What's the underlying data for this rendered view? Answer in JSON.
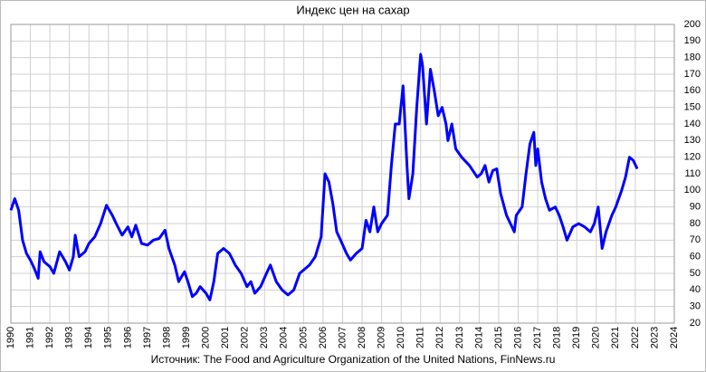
{
  "chart_data": {
    "type": "line",
    "title": "Индекс цен на сахар",
    "source": "Источник: The Food and Agriculture Organization of the United Nations, FinNews.ru",
    "series": [
      {
        "name": "Индекс цен на сахар",
        "color": "#0000ff",
        "x": [
          1990.0,
          1990.2,
          1990.4,
          1990.6,
          1990.8,
          1991.0,
          1991.2,
          1991.4,
          1991.5,
          1991.7,
          1992.0,
          1992.2,
          1992.5,
          1992.8,
          1993.0,
          1993.2,
          1993.3,
          1993.5,
          1993.8,
          1994.0,
          1994.3,
          1994.6,
          1994.9,
          1995.2,
          1995.4,
          1995.7,
          1996.0,
          1996.2,
          1996.4,
          1996.7,
          1997.0,
          1997.3,
          1997.6,
          1997.9,
          1998.1,
          1998.4,
          1998.6,
          1998.9,
          1999.1,
          1999.3,
          1999.5,
          1999.7,
          2000.0,
          2000.2,
          2000.4,
          2000.6,
          2000.9,
          2001.2,
          2001.5,
          2001.8,
          2002.1,
          2002.3,
          2002.5,
          2002.8,
          2003.1,
          2003.3,
          2003.6,
          2003.9,
          2004.2,
          2004.5,
          2004.8,
          2005.0,
          2005.3,
          2005.6,
          2005.9,
          2006.1,
          2006.3,
          2006.5,
          2006.7,
          2006.9,
          2007.2,
          2007.4,
          2007.7,
          2008.0,
          2008.2,
          2008.4,
          2008.6,
          2008.8,
          2009.0,
          2009.3,
          2009.5,
          2009.7,
          2009.9,
          2010.1,
          2010.3,
          2010.4,
          2010.6,
          2010.8,
          2011.0,
          2011.1,
          2011.3,
          2011.5,
          2011.7,
          2011.9,
          2012.1,
          2012.3,
          2012.4,
          2012.6,
          2012.8,
          2013.1,
          2013.5,
          2013.9,
          2014.1,
          2014.3,
          2014.5,
          2014.7,
          2014.9,
          2015.1,
          2015.4,
          2015.6,
          2015.8,
          2015.9,
          2016.2,
          2016.4,
          2016.6,
          2016.8,
          2016.9,
          2017.0,
          2017.2,
          2017.4,
          2017.6,
          2017.9,
          2018.1,
          2018.3,
          2018.5,
          2018.8,
          2019.1,
          2019.4,
          2019.7,
          2019.9,
          2020.1,
          2020.3,
          2020.5,
          2020.8,
          2021.0,
          2021.3,
          2021.5,
          2021.7,
          2021.9,
          2022.1
        ],
        "values": [
          88,
          95,
          88,
          70,
          62,
          58,
          53,
          47,
          63,
          57,
          54,
          50,
          63,
          57,
          52,
          60,
          73,
          60,
          63,
          68,
          72,
          80,
          91,
          85,
          80,
          73,
          78,
          72,
          79,
          68,
          67,
          70,
          71,
          76,
          65,
          55,
          45,
          51,
          44,
          36,
          38,
          42,
          38,
          34,
          45,
          62,
          65,
          62,
          55,
          50,
          42,
          45,
          38,
          42,
          50,
          55,
          45,
          40,
          37,
          40,
          50,
          52,
          55,
          60,
          72,
          110,
          105,
          92,
          75,
          70,
          62,
          58,
          62,
          65,
          82,
          75,
          90,
          75,
          80,
          85,
          115,
          140,
          140,
          163,
          115,
          95,
          110,
          150,
          182,
          175,
          140,
          173,
          160,
          145,
          150,
          140,
          130,
          140,
          125,
          120,
          115,
          108,
          110,
          115,
          105,
          112,
          113,
          98,
          85,
          80,
          75,
          85,
          90,
          110,
          128,
          135,
          115,
          125,
          105,
          95,
          88,
          90,
          85,
          78,
          70,
          78,
          80,
          78,
          75,
          80,
          90,
          65,
          75,
          85,
          90,
          100,
          108,
          120,
          118,
          113
        ]
      }
    ],
    "xlim": [
      1990,
      2024
    ],
    "xticks": [
      1990,
      1991,
      1992,
      1993,
      1994,
      1995,
      1996,
      1997,
      1998,
      1999,
      2000,
      2001,
      2002,
      2003,
      2004,
      2005,
      2006,
      2007,
      2008,
      2009,
      2010,
      2011,
      2012,
      2013,
      2014,
      2015,
      2016,
      2017,
      2018,
      2019,
      2020,
      2021,
      2022,
      2023,
      2024
    ],
    "ylim": [
      20,
      200
    ],
    "yticks": [
      20,
      30,
      40,
      50,
      60,
      70,
      80,
      90,
      100,
      110,
      120,
      130,
      140,
      150,
      160,
      170,
      180,
      190,
      200
    ],
    "grid": true
  }
}
